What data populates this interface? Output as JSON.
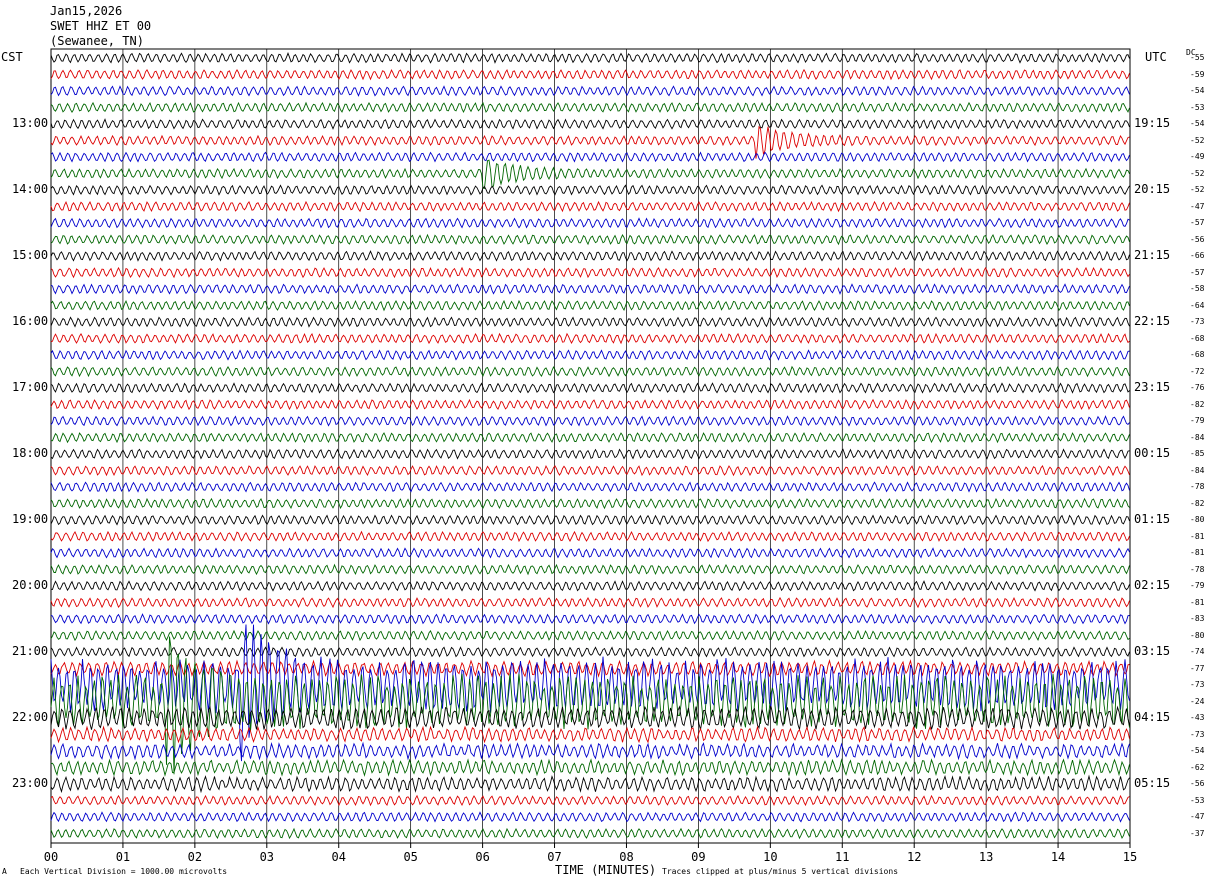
{
  "header": {
    "date": "Jan15,2026",
    "station": "SWET HHZ ET 00",
    "location": "(Sewanee, TN)"
  },
  "left_zone": "CST",
  "right_zone": "UTC",
  "dc_label": "DC",
  "footer": {
    "scale": "Each Vertical Division = 1000.00 microvolts",
    "clip": "Traces clipped at plus/minus 5 vertical divisions",
    "corner_mark": "A"
  },
  "colors": {
    "cycle": [
      "#000000",
      "#dd0000",
      "#0000cc",
      "#006600"
    ],
    "grid": "#000000"
  },
  "chart_data": {
    "type": "line",
    "title": "",
    "xlabel": "TIME (MINUTES)",
    "x_ticks": [
      "00",
      "01",
      "02",
      "03",
      "04",
      "05",
      "06",
      "07",
      "08",
      "09",
      "10",
      "11",
      "12",
      "13",
      "14",
      "15"
    ],
    "xlim": [
      0,
      15
    ],
    "rows_per_hour": 4,
    "left_hour_labels": [
      "13:00",
      "14:00",
      "15:00",
      "16:00",
      "17:00",
      "18:00",
      "19:00",
      "20:00",
      "21:00",
      "22:00",
      "23:00"
    ],
    "right_hour_labels": [
      "19:15",
      "20:15",
      "21:15",
      "22:15",
      "23:15",
      "00:15",
      "01:15",
      "02:15",
      "03:15",
      "04:15",
      "05:15"
    ],
    "dc_offsets": [
      "-55",
      "-59",
      "-54",
      "-53",
      "-54",
      "-52",
      "-49",
      "-52",
      "-52",
      "-47",
      "-57",
      "-56",
      "-66",
      "-57",
      "-58",
      "-64",
      "-73",
      "-68",
      "-68",
      "-72",
      "-76",
      "-82",
      "-79",
      "-84",
      "-85",
      "-84",
      "-78",
      "-82",
      "-80",
      "-81",
      "-81",
      "-78",
      "-79",
      "-81",
      "-83",
      "-80",
      "-74",
      "-77",
      "-73",
      "-24",
      "-43",
      "-73",
      "-54",
      "-62",
      "-56",
      "-53",
      "-47",
      "-37"
    ],
    "events": [
      {
        "trace": 5,
        "minute": 9.8,
        "amplitude": "large",
        "color": "red"
      },
      {
        "trace": 7,
        "minute": 6.0,
        "amplitude": "large",
        "color": "green"
      },
      {
        "trace": 39,
        "minute": 1.6,
        "amplitude": "clipped",
        "color": "green"
      },
      {
        "trace": 38,
        "minute": 2.6,
        "amplitude": "clipped",
        "color": "blue"
      }
    ]
  }
}
